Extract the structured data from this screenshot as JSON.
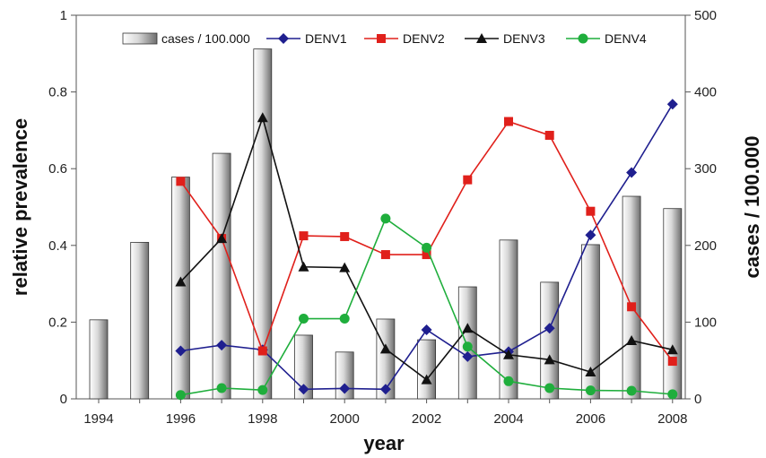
{
  "chart_data": {
    "type": "bar+line",
    "x": [
      1994,
      1995,
      1996,
      1997,
      1998,
      1999,
      2000,
      2001,
      2002,
      2003,
      2004,
      2005,
      2006,
      2007,
      2008
    ],
    "xticks": [
      "1994",
      "1996",
      "1998",
      "2000",
      "2002",
      "2004",
      "2006",
      "2008"
    ],
    "xlabel": "year",
    "ylabel": "relative prevalence",
    "y2label": "cases / 100.000",
    "ylim": [
      0,
      1
    ],
    "y2lim": [
      0,
      500
    ],
    "yticks": [
      "0",
      "0.2",
      "0.4",
      "0.6",
      "0.8",
      "1"
    ],
    "y2ticks": [
      "0",
      "100",
      "200",
      "300",
      "400",
      "500"
    ],
    "bars": {
      "name": "cases / 100.000",
      "axis": "right",
      "values": [
        103,
        204,
        289,
        320,
        456,
        83,
        61,
        104,
        77,
        146,
        207,
        152,
        201,
        264,
        248
      ]
    },
    "series": [
      {
        "name": "DENV1",
        "color": "#1f1f8f",
        "marker": "diamond",
        "values": [
          null,
          null,
          0.125,
          0.14,
          0.128,
          0.025,
          0.027,
          0.025,
          0.18,
          0.11,
          0.123,
          0.184,
          0.427,
          0.59,
          0.768
        ]
      },
      {
        "name": "DENV2",
        "color": "#e0201b",
        "marker": "square",
        "values": [
          null,
          null,
          0.567,
          0.418,
          0.125,
          0.425,
          0.423,
          0.376,
          0.376,
          0.571,
          0.723,
          0.687,
          0.489,
          0.24,
          0.098
        ]
      },
      {
        "name": "DENV3",
        "color": "#111111",
        "marker": "triangle",
        "values": [
          null,
          null,
          0.305,
          0.418,
          0.733,
          0.344,
          0.342,
          0.13,
          0.05,
          0.184,
          0.115,
          0.102,
          0.07,
          0.152,
          0.128
        ]
      },
      {
        "name": "DENV4",
        "color": "#1fae3c",
        "marker": "circle",
        "values": [
          null,
          null,
          0.01,
          0.028,
          0.023,
          0.209,
          0.209,
          0.47,
          0.394,
          0.136,
          0.046,
          0.028,
          0.022,
          0.021,
          0.012
        ]
      }
    ],
    "legend_position": "top"
  }
}
